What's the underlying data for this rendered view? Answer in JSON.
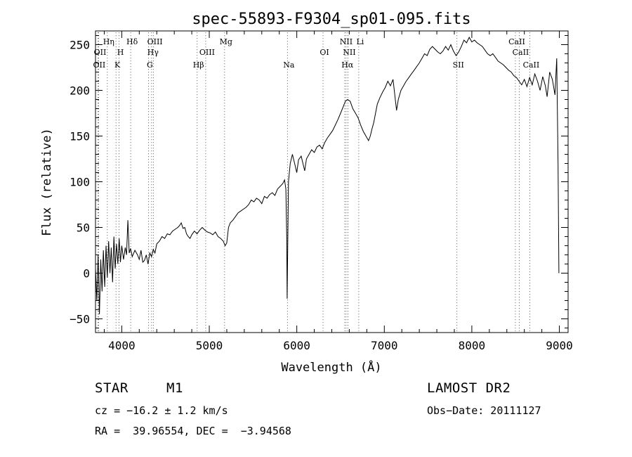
{
  "chart_data": {
    "type": "line",
    "title": "spec-55893-F9304_sp01-095.fits",
    "xlabel": "Wavelength (Å)",
    "ylabel": "Flux (relative)",
    "xlim": [
      3700,
      9100
    ],
    "ylim": [
      -65,
      265
    ],
    "xticks": [
      4000,
      5000,
      6000,
      7000,
      8000,
      9000
    ],
    "yticks": [
      -50,
      0,
      50,
      100,
      150,
      200,
      250
    ],
    "grid": false,
    "line_color": "#000000",
    "series": [
      {
        "values": [
          [
            3700,
            5
          ],
          [
            3715,
            -30
          ],
          [
            3730,
            20
          ],
          [
            3745,
            -45
          ],
          [
            3760,
            15
          ],
          [
            3775,
            -20
          ],
          [
            3790,
            25
          ],
          [
            3805,
            -15
          ],
          [
            3820,
            30
          ],
          [
            3835,
            -5
          ],
          [
            3850,
            35
          ],
          [
            3865,
            0
          ],
          [
            3880,
            28
          ],
          [
            3895,
            -10
          ],
          [
            3910,
            40
          ],
          [
            3925,
            5
          ],
          [
            3940,
            32
          ],
          [
            3955,
            10
          ],
          [
            3970,
            38
          ],
          [
            3985,
            12
          ],
          [
            4000,
            30
          ],
          [
            4020,
            15
          ],
          [
            4040,
            28
          ],
          [
            4055,
            20
          ],
          [
            4070,
            58
          ],
          [
            4085,
            22
          ],
          [
            4100,
            27
          ],
          [
            4120,
            18
          ],
          [
            4150,
            25
          ],
          [
            4180,
            20
          ],
          [
            4200,
            15
          ],
          [
            4220,
            25
          ],
          [
            4240,
            12
          ],
          [
            4260,
            14
          ],
          [
            4280,
            20
          ],
          [
            4300,
            10
          ],
          [
            4320,
            22
          ],
          [
            4340,
            18
          ],
          [
            4360,
            26
          ],
          [
            4380,
            22
          ],
          [
            4400,
            32
          ],
          [
            4430,
            35
          ],
          [
            4460,
            40
          ],
          [
            4490,
            38
          ],
          [
            4520,
            43
          ],
          [
            4550,
            42
          ],
          [
            4580,
            46
          ],
          [
            4610,
            48
          ],
          [
            4640,
            50
          ],
          [
            4660,
            52
          ],
          [
            4680,
            55
          ],
          [
            4700,
            49
          ],
          [
            4720,
            50
          ],
          [
            4740,
            43
          ],
          [
            4760,
            40
          ],
          [
            4780,
            38
          ],
          [
            4800,
            42
          ],
          [
            4830,
            46
          ],
          [
            4860,
            43
          ],
          [
            4890,
            47
          ],
          [
            4920,
            50
          ],
          [
            4950,
            47
          ],
          [
            4980,
            45
          ],
          [
            5010,
            44
          ],
          [
            5040,
            42
          ],
          [
            5070,
            45
          ],
          [
            5100,
            40
          ],
          [
            5130,
            38
          ],
          [
            5160,
            35
          ],
          [
            5180,
            30
          ],
          [
            5200,
            33
          ],
          [
            5220,
            50
          ],
          [
            5240,
            55
          ],
          [
            5270,
            58
          ],
          [
            5300,
            62
          ],
          [
            5330,
            66
          ],
          [
            5360,
            68
          ],
          [
            5390,
            70
          ],
          [
            5420,
            72
          ],
          [
            5450,
            75
          ],
          [
            5480,
            80
          ],
          [
            5510,
            78
          ],
          [
            5540,
            82
          ],
          [
            5570,
            80
          ],
          [
            5600,
            76
          ],
          [
            5630,
            84
          ],
          [
            5660,
            82
          ],
          [
            5690,
            86
          ],
          [
            5720,
            88
          ],
          [
            5750,
            85
          ],
          [
            5780,
            92
          ],
          [
            5810,
            95
          ],
          [
            5840,
            98
          ],
          [
            5860,
            102
          ],
          [
            5875,
            92
          ],
          [
            5885,
            40
          ],
          [
            5890,
            -28
          ],
          [
            5895,
            20
          ],
          [
            5905,
            100
          ],
          [
            5925,
            120
          ],
          [
            5950,
            130
          ],
          [
            5980,
            118
          ],
          [
            6000,
            110
          ],
          [
            6020,
            124
          ],
          [
            6050,
            128
          ],
          [
            6070,
            120
          ],
          [
            6090,
            112
          ],
          [
            6110,
            125
          ],
          [
            6140,
            130
          ],
          [
            6170,
            135
          ],
          [
            6200,
            132
          ],
          [
            6230,
            138
          ],
          [
            6260,
            140
          ],
          [
            6290,
            136
          ],
          [
            6320,
            143
          ],
          [
            6350,
            148
          ],
          [
            6380,
            152
          ],
          [
            6410,
            156
          ],
          [
            6440,
            162
          ],
          [
            6470,
            168
          ],
          [
            6500,
            175
          ],
          [
            6530,
            182
          ],
          [
            6555,
            188
          ],
          [
            6580,
            190
          ],
          [
            6610,
            188
          ],
          [
            6640,
            180
          ],
          [
            6670,
            175
          ],
          [
            6700,
            170
          ],
          [
            6730,
            162
          ],
          [
            6760,
            155
          ],
          [
            6790,
            150
          ],
          [
            6820,
            145
          ],
          [
            6840,
            150
          ],
          [
            6860,
            158
          ],
          [
            6880,
            165
          ],
          [
            6900,
            175
          ],
          [
            6920,
            185
          ],
          [
            6950,
            192
          ],
          [
            6980,
            198
          ],
          [
            7010,
            203
          ],
          [
            7040,
            210
          ],
          [
            7070,
            205
          ],
          [
            7100,
            212
          ],
          [
            7120,
            195
          ],
          [
            7140,
            178
          ],
          [
            7160,
            190
          ],
          [
            7190,
            200
          ],
          [
            7220,
            205
          ],
          [
            7250,
            210
          ],
          [
            7280,
            214
          ],
          [
            7310,
            218
          ],
          [
            7340,
            222
          ],
          [
            7370,
            226
          ],
          [
            7400,
            230
          ],
          [
            7430,
            235
          ],
          [
            7460,
            240
          ],
          [
            7490,
            238
          ],
          [
            7520,
            245
          ],
          [
            7550,
            248
          ],
          [
            7580,
            245
          ],
          [
            7610,
            242
          ],
          [
            7640,
            240
          ],
          [
            7670,
            243
          ],
          [
            7700,
            248
          ],
          [
            7730,
            244
          ],
          [
            7760,
            250
          ],
          [
            7790,
            243
          ],
          [
            7820,
            238
          ],
          [
            7850,
            242
          ],
          [
            7880,
            248
          ],
          [
            7910,
            255
          ],
          [
            7940,
            252
          ],
          [
            7970,
            258
          ],
          [
            8000,
            253
          ],
          [
            8030,
            255
          ],
          [
            8060,
            252
          ],
          [
            8090,
            250
          ],
          [
            8120,
            248
          ],
          [
            8150,
            244
          ],
          [
            8180,
            240
          ],
          [
            8210,
            238
          ],
          [
            8240,
            240
          ],
          [
            8270,
            236
          ],
          [
            8300,
            232
          ],
          [
            8330,
            230
          ],
          [
            8360,
            228
          ],
          [
            8390,
            225
          ],
          [
            8420,
            222
          ],
          [
            8450,
            220
          ],
          [
            8480,
            216
          ],
          [
            8510,
            214
          ],
          [
            8540,
            210
          ],
          [
            8570,
            206
          ],
          [
            8600,
            212
          ],
          [
            8630,
            204
          ],
          [
            8660,
            214
          ],
          [
            8690,
            206
          ],
          [
            8720,
            218
          ],
          [
            8750,
            210
          ],
          [
            8780,
            200
          ],
          [
            8810,
            215
          ],
          [
            8840,
            205
          ],
          [
            8860,
            193
          ],
          [
            8890,
            220
          ],
          [
            8920,
            212
          ],
          [
            8950,
            195
          ],
          [
            8970,
            235
          ],
          [
            8985,
            120
          ],
          [
            8995,
            0
          ]
        ]
      }
    ],
    "lines": [
      {
        "x": 3727,
        "label": "OII",
        "row": 2
      },
      {
        "x": 3736,
        "label": "OII",
        "row": 1
      },
      {
        "x": 3835,
        "label": "Hη",
        "row": 0
      },
      {
        "x": 3934,
        "label": "K",
        "row": 2
      },
      {
        "x": 3969,
        "label": "H",
        "row": 1
      },
      {
        "x": 4102,
        "label": "Hδ",
        "row": 0
      },
      {
        "x": 4305,
        "label": "G",
        "row": 2
      },
      {
        "x": 4341,
        "label": "Hγ",
        "row": 1
      },
      {
        "x": 4363,
        "label": "OIII",
        "row": 0
      },
      {
        "x": 4861,
        "label": "Hβ",
        "row": 2
      },
      {
        "x": 4959,
        "label": "OIII",
        "row": 1
      },
      {
        "x": 5175,
        "label": "Mg",
        "row": 0
      },
      {
        "x": 5893,
        "label": "Na",
        "row": 2
      },
      {
        "x": 6300,
        "label": "OI",
        "row": 1
      },
      {
        "x": 6548,
        "label": "NII",
        "row": 0
      },
      {
        "x": 6563,
        "label": "Hα",
        "row": 2
      },
      {
        "x": 6584,
        "label": "NII",
        "row": 1
      },
      {
        "x": 6708,
        "label": "Li",
        "row": 0
      },
      {
        "x": 7830,
        "label": "SII",
        "row": 2
      },
      {
        "x": 8498,
        "label": "CaII",
        "row": 0
      },
      {
        "x": 8542,
        "label": "CaII",
        "row": 1
      },
      {
        "x": 8662,
        "label": "CaII",
        "row": 2
      }
    ]
  },
  "info": {
    "class": "STAR",
    "subclass": "M1",
    "survey": "LAMOST DR2",
    "cz": "cz = −16.2 ± 1.2 km/s",
    "obs_date": "Obs−Date: 20111127",
    "coords": "RA =  39.96554, DEC =  −3.94568"
  }
}
